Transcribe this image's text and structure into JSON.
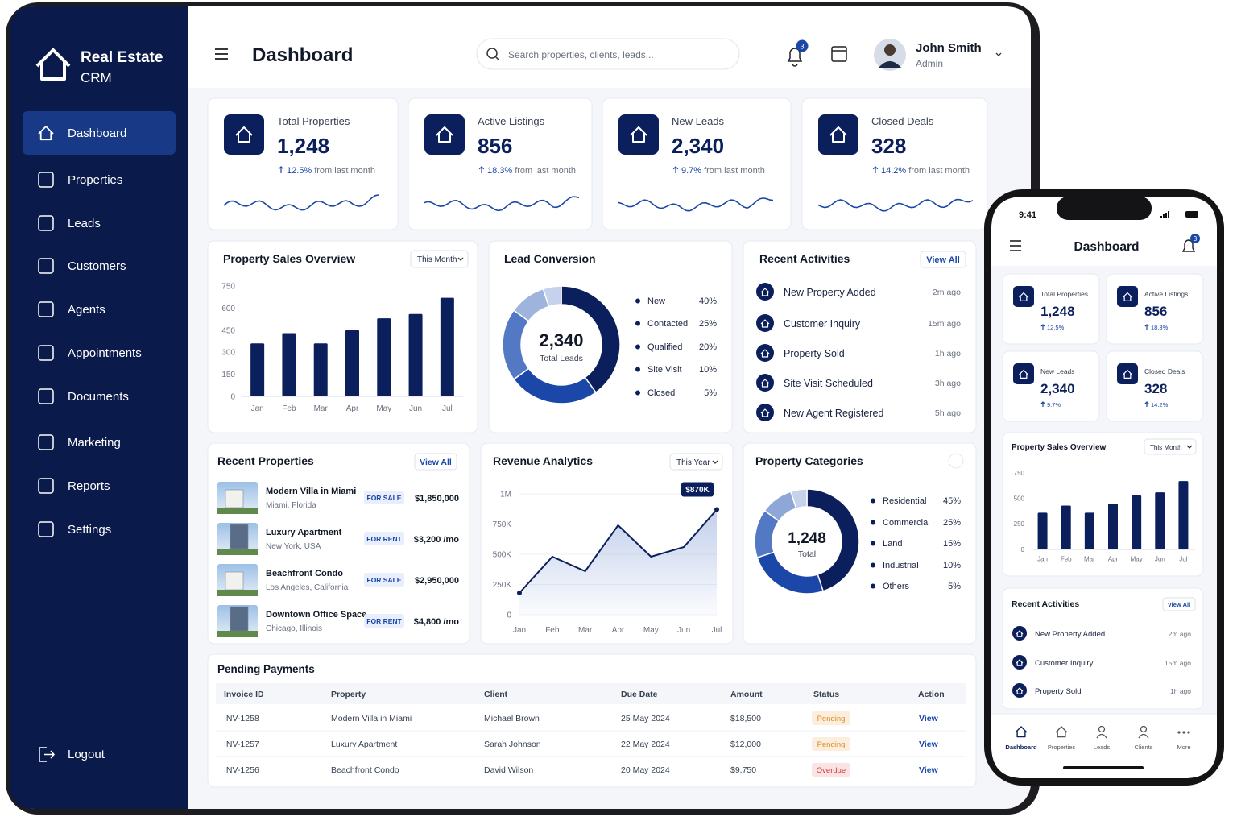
{
  "brand": {
    "line1": "Real Estate",
    "line2": "CRM"
  },
  "nav": [
    "Dashboard",
    "Properties",
    "Leads",
    "Customers",
    "Agents",
    "Appointments",
    "Documents",
    "Marketing",
    "Reports",
    "Settings"
  ],
  "logout": "Logout",
  "header": {
    "title": "Dashboard",
    "search": "Search properties, clients, leads...",
    "notifications": 3,
    "user": "John Smith",
    "role": "Admin"
  },
  "stats": [
    {
      "label": "Total Properties",
      "value": "1,248",
      "change": "12.5%",
      "suffix": "from last month"
    },
    {
      "label": "Active Listings",
      "value": "856",
      "change": "18.3%",
      "suffix": "from last month"
    },
    {
      "label": "New Leads",
      "value": "2,340",
      "change": "9.7%",
      "suffix": "from last month"
    },
    {
      "label": "Closed Deals",
      "value": "328",
      "change": "14.2%",
      "suffix": "from last month"
    }
  ],
  "sales": {
    "type": "bar",
    "title": "Property Sales Overview",
    "filter": "This Month",
    "categories": [
      "Jan",
      "Feb",
      "Mar",
      "Apr",
      "May",
      "Jun",
      "Jul"
    ],
    "values": [
      360,
      430,
      360,
      450,
      530,
      560,
      670
    ],
    "color": "#0b1f5c",
    "ylim": [
      0,
      750
    ],
    "yticks": [
      0,
      150,
      300,
      450,
      600,
      750
    ]
  },
  "lead": {
    "type": "donut",
    "title": "Lead Conversion",
    "total": "2,340",
    "total_label": "Total Leads",
    "segments": [
      {
        "name": "New",
        "value": 40,
        "value_label": "40%",
        "color": "#0b1f5c"
      },
      {
        "name": "Contacted",
        "value": 25,
        "value_label": "25%",
        "color": "#1a47a8"
      },
      {
        "name": "Qualified",
        "value": 20,
        "value_label": "20%",
        "color": "#5479c4"
      },
      {
        "name": "Site Visit",
        "value": 10,
        "value_label": "10%",
        "color": "#9fb4dc"
      },
      {
        "name": "Closed",
        "value": 5,
        "value_label": "5%",
        "color": "#c6d2ec"
      }
    ]
  },
  "activities": {
    "title": "Recent Activities",
    "view_all": "View All",
    "items": [
      {
        "text": "New Property Added",
        "time": "2m ago"
      },
      {
        "text": "Customer Inquiry",
        "time": "15m ago"
      },
      {
        "text": "Property Sold",
        "time": "1h ago"
      },
      {
        "text": "Site Visit Scheduled",
        "time": "3h ago"
      },
      {
        "text": "New Agent Registered",
        "time": "5h ago"
      }
    ]
  },
  "recent": {
    "title": "Recent Properties",
    "view_all": "View All",
    "items": [
      {
        "name": "Modern Villa in Miami",
        "location": "Miami, Florida",
        "status": "FOR SALE",
        "price": "$1,850,000"
      },
      {
        "name": "Luxury Apartment",
        "location": "New York, USA",
        "status": "FOR RENT",
        "price": "$3,200 /mo"
      },
      {
        "name": "Beachfront Condo",
        "location": "Los Angeles, California",
        "status": "FOR SALE",
        "price": "$2,950,000"
      },
      {
        "name": "Downtown Office Space",
        "location": "Chicago, Illinois",
        "status": "FOR RENT",
        "price": "$4,800 /mo"
      }
    ]
  },
  "revenue": {
    "type": "line",
    "title": "Revenue Analytics",
    "filter": "This Year",
    "categories": [
      "Jan",
      "Feb",
      "Mar",
      "Apr",
      "May",
      "Jun",
      "Jul"
    ],
    "values": [
      180000,
      480000,
      360000,
      740000,
      480000,
      560000,
      870000
    ],
    "color": "#0b1f5c",
    "ylim": [
      0,
      1000000
    ],
    "yticks": [
      0,
      {
        "value": 250000,
        "label": "250K"
      },
      {
        "value": 500000,
        "label": "500K"
      },
      {
        "value": 750000,
        "label": "750K"
      },
      {
        "value": 1000000,
        "label": "1M"
      }
    ],
    "annotation": "$870K"
  },
  "categories": {
    "type": "donut",
    "title": "Property Categories",
    "total": "1,248",
    "total_label": "Total",
    "segments": [
      {
        "name": "Residential",
        "value": 45,
        "value_label": "45%",
        "color": "#0b1f5c"
      },
      {
        "name": "Commercial",
        "value": 25,
        "value_label": "25%",
        "color": "#1a47a8"
      },
      {
        "name": "Land",
        "value": 15,
        "value_label": "15%",
        "color": "#5479c4"
      },
      {
        "name": "Industrial",
        "value": 10,
        "value_label": "10%",
        "color": "#8ea6d8"
      },
      {
        "name": "Others",
        "value": 5,
        "value_label": "5%",
        "color": "#c6d2ec"
      }
    ]
  },
  "payments": {
    "title": "Pending Payments",
    "columns": [
      "Invoice ID",
      "Property",
      "Client",
      "Due Date",
      "Amount",
      "Status",
      "Action"
    ],
    "rows": [
      {
        "invoice": "INV-1258",
        "property": "Modern Villa in Miami",
        "client": "Michael Brown",
        "due": "25 May 2024",
        "amount": "$18,500",
        "status": "Pending",
        "status_color": "#e08a1e",
        "action": "View"
      },
      {
        "invoice": "INV-1257",
        "property": "Luxury Apartment",
        "client": "Sarah Johnson",
        "due": "22 May 2024",
        "amount": "$12,000",
        "status": "Pending",
        "status_color": "#e08a1e",
        "action": "View"
      },
      {
        "invoice": "INV-1256",
        "property": "Beachfront Condo",
        "client": "David Wilson",
        "due": "20 May 2024",
        "amount": "$9,750",
        "status": "Overdue",
        "status_color": "#d93a3a",
        "action": "View"
      }
    ]
  },
  "mobile": {
    "time": "9:41",
    "sales_ylim": [
      0,
      750
    ],
    "sales_yticks": [
      0,
      250,
      500,
      750
    ],
    "nav": [
      "Dashboard",
      "Properties",
      "Leads",
      "Clients",
      "More"
    ]
  }
}
